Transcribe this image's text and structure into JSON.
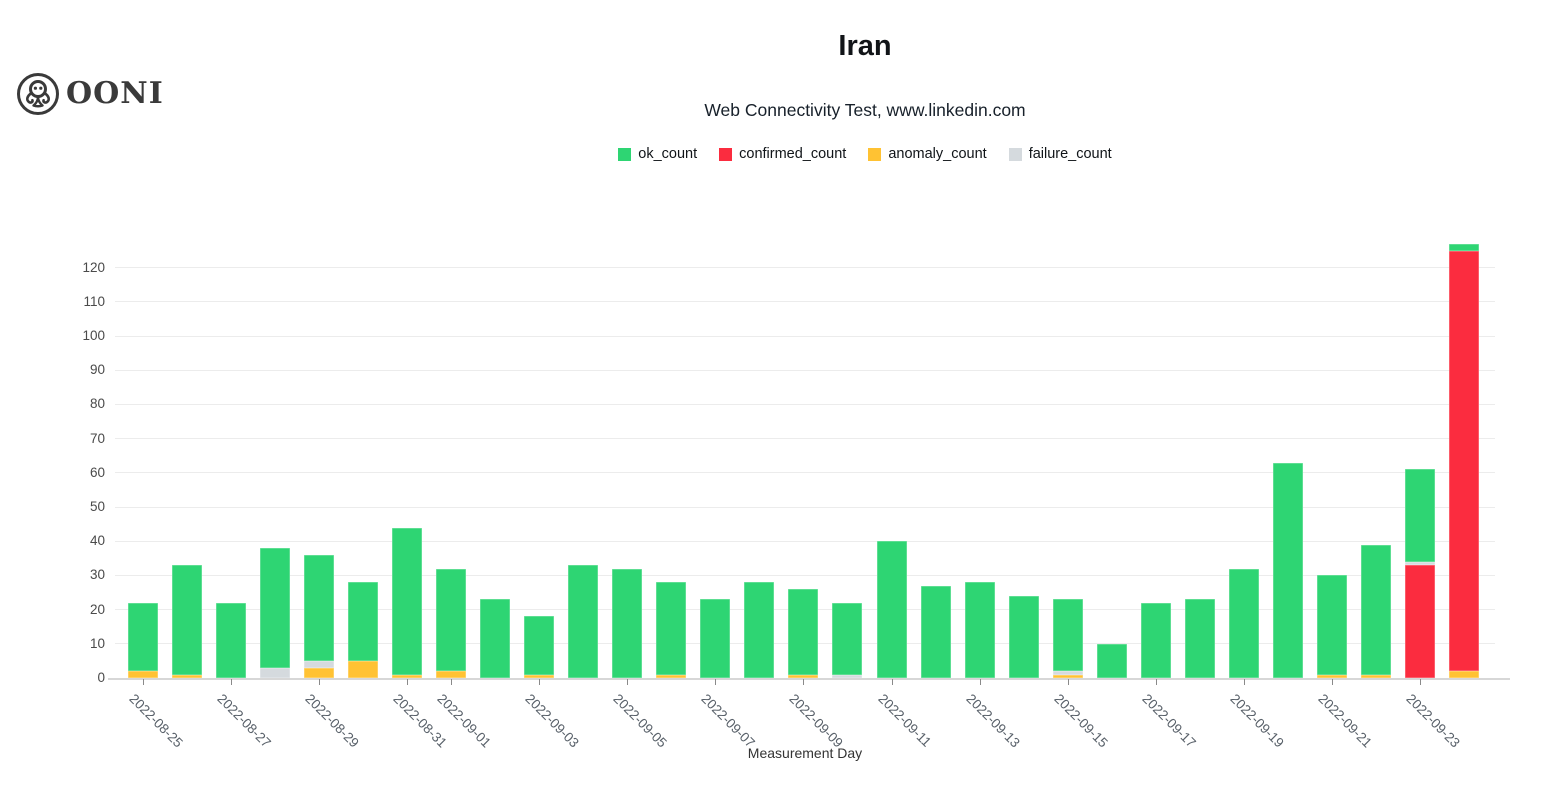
{
  "header": {
    "logo_text": "OONI",
    "logo_icon": "octopus-in-circle-icon"
  },
  "chart_data": {
    "type": "bar",
    "stacked": true,
    "title": "Iran",
    "subtitle": "Web Connectivity Test, www.linkedin.com",
    "xlabel": "Measurement Day",
    "ylabel": "",
    "ylim": [
      0,
      131
    ],
    "grid": "horizontal",
    "legend_position": "top-center",
    "yticks": [
      0,
      10,
      20,
      30,
      40,
      50,
      60,
      70,
      80,
      90,
      100,
      110,
      120
    ],
    "categories": [
      "2022-08-25",
      "2022-08-26",
      "2022-08-27",
      "2022-08-28",
      "2022-08-29",
      "2022-08-30",
      "2022-08-31",
      "2022-09-01",
      "2022-09-02",
      "2022-09-03",
      "2022-09-04",
      "2022-09-05",
      "2022-09-06",
      "2022-09-07",
      "2022-09-08",
      "2022-09-09",
      "2022-09-10",
      "2022-09-11",
      "2022-09-12",
      "2022-09-13",
      "2022-09-14",
      "2022-09-15",
      "2022-09-16",
      "2022-09-17",
      "2022-09-18",
      "2022-09-19",
      "2022-09-20",
      "2022-09-21",
      "2022-09-22",
      "2022-09-23",
      "2022-09-24"
    ],
    "x_tick_indices": [
      0,
      2,
      4,
      6,
      7,
      9,
      11,
      13,
      15,
      17,
      19,
      21,
      23,
      25,
      27,
      29
    ],
    "stack_order_bottom_to_top": [
      "anomaly_count",
      "confirmed_count",
      "failure_count",
      "ok_count"
    ],
    "series": [
      {
        "name": "ok_count",
        "color": "#2ed573",
        "values": [
          20,
          32,
          22,
          35,
          31,
          23,
          43,
          30,
          23,
          17,
          33,
          32,
          27,
          23,
          28,
          25,
          21,
          40,
          27,
          28,
          24,
          21,
          10,
          22,
          23,
          32,
          63,
          29,
          38,
          27,
          2
        ]
      },
      {
        "name": "confirmed_count",
        "color": "#fb2c3f",
        "values": [
          0,
          0,
          0,
          0,
          0,
          0,
          0,
          0,
          0,
          0,
          0,
          0,
          0,
          0,
          0,
          0,
          0,
          0,
          0,
          0,
          0,
          0,
          0,
          0,
          0,
          0,
          0,
          0,
          0,
          33,
          123
        ]
      },
      {
        "name": "anomaly_count",
        "color": "#ffc233",
        "values": [
          2,
          1,
          0,
          0,
          3,
          5,
          1,
          2,
          0,
          1,
          0,
          0,
          1,
          0,
          0,
          1,
          0,
          0,
          0,
          0,
          0,
          1,
          0,
          0,
          0,
          0,
          0,
          1,
          1,
          0,
          2
        ]
      },
      {
        "name": "failure_count",
        "color": "#d5dade",
        "values": [
          0,
          0,
          0,
          3,
          2,
          0,
          0,
          0,
          0,
          0,
          0,
          0,
          0,
          0,
          0,
          0,
          1,
          0,
          0,
          0,
          0,
          1,
          0,
          0,
          0,
          0,
          0,
          0,
          0,
          1,
          0
        ]
      }
    ]
  }
}
